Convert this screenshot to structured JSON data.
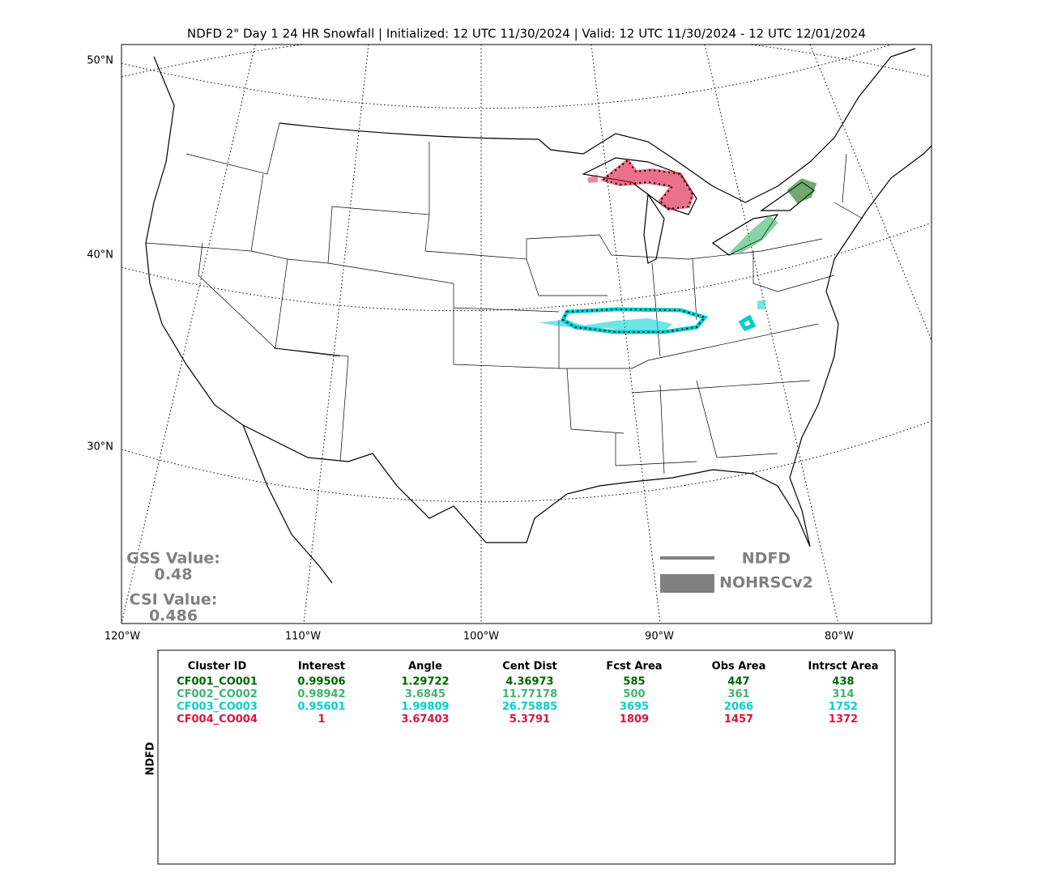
{
  "title": "NDFD 2\" Day 1 24 HR Snowfall | Initialized: 12 UTC 11/30/2024 | Valid: 12 UTC 11/30/2024 - 12 UTC 12/01/2024",
  "map": {
    "lat_labels": [
      "50°N",
      "40°N",
      "30°N"
    ],
    "lon_labels": [
      "120°W",
      "110°W",
      "100°W",
      "90°W",
      "80°W"
    ],
    "scores": [
      {
        "label": "GSS Value:",
        "value": "0.48"
      },
      {
        "label": "CSI Value:",
        "value": "0.486"
      }
    ],
    "legend": [
      "NDFD",
      "NOHRSCv2"
    ]
  },
  "table": {
    "side_label": "NDFD",
    "columns": [
      "Cluster ID",
      "Interest",
      "Angle",
      "Cent Dist",
      "Fcst Area",
      "Obs Area",
      "Intrsct Area"
    ],
    "rows": [
      {
        "color": "#006400",
        "cells": [
          "CF001_CO001",
          "0.99506",
          "1.29722",
          "4.36973",
          "585",
          "447",
          "438"
        ]
      },
      {
        "color": "#3cb371",
        "cells": [
          "CF002_CO002",
          "0.98942",
          "3.6845",
          "11.77178",
          "500",
          "361",
          "314"
        ]
      },
      {
        "color": "#00ced1",
        "cells": [
          "CF003_CO003",
          "0.95601",
          "1.99809",
          "26.75885",
          "3695",
          "2066",
          "1752"
        ]
      },
      {
        "color": "#dc143c",
        "cells": [
          "CF004_CO004",
          "1",
          "3.67403",
          "5.3791",
          "1809",
          "1457",
          "1372"
        ]
      }
    ]
  }
}
